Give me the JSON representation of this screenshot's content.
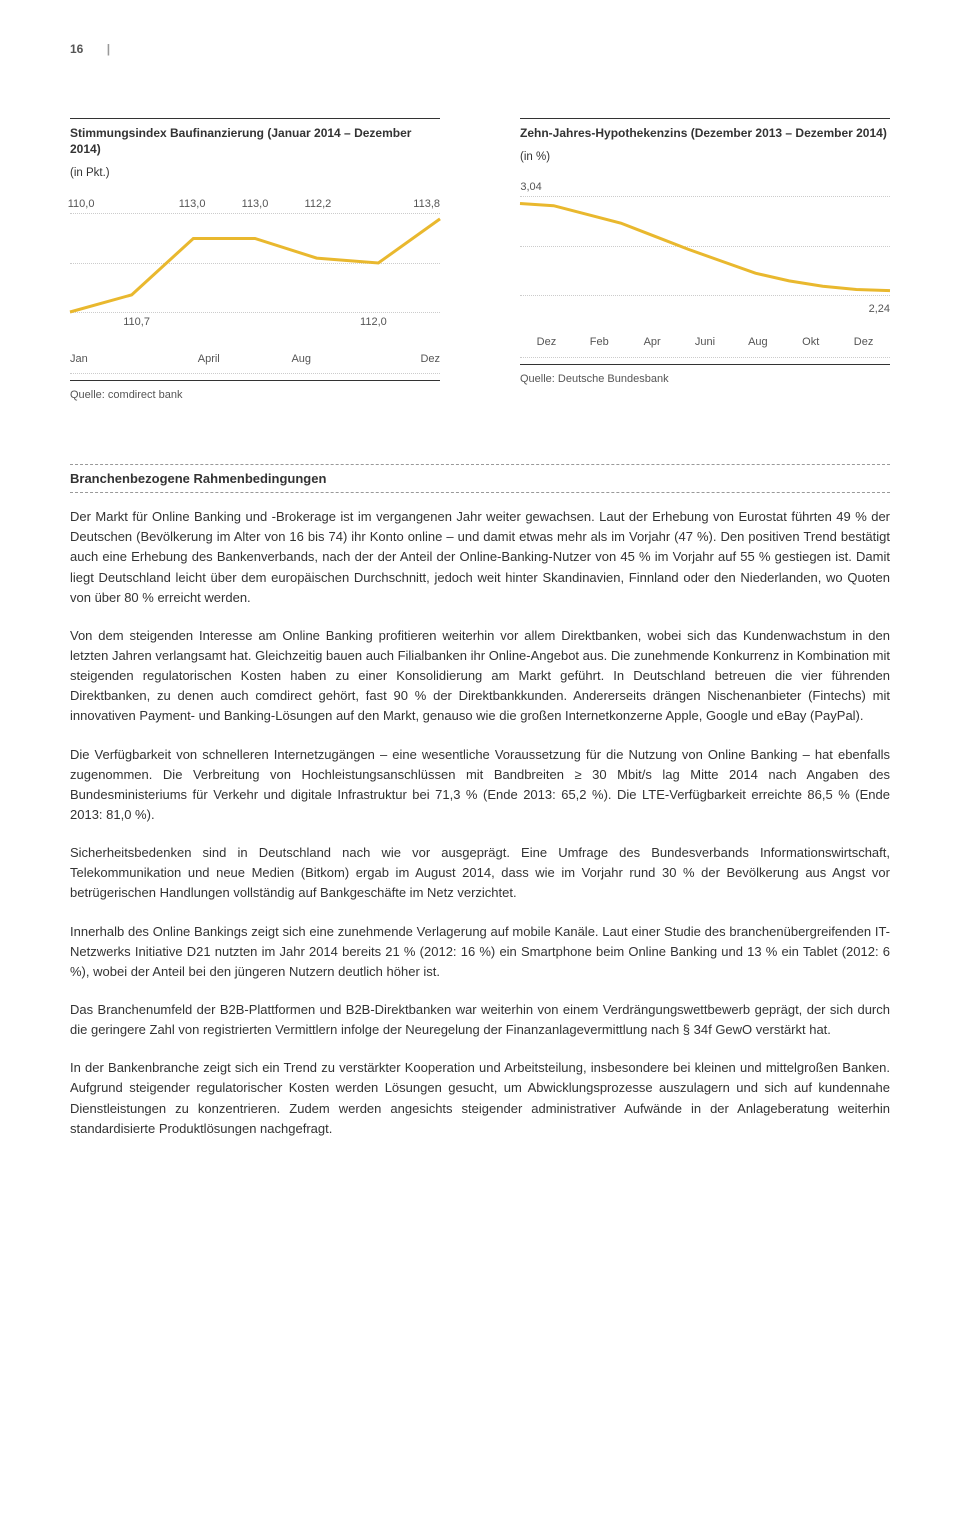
{
  "page_number": "16",
  "chart_left": {
    "title": "Stimmungsindex Baufinanzierung (Januar 2014 – Dezember 2014)",
    "subtitle": "(in Pkt.)",
    "type": "line",
    "line_color": "#e9b82e",
    "line_width": 3,
    "grid_color": "#cccccc",
    "background_color": "#ffffff",
    "point_labels": [
      "110,0",
      "110,7",
      "113,0",
      "113,0",
      "112,2",
      "112,0",
      "113,8"
    ],
    "values": [
      110.0,
      110.7,
      113.0,
      113.0,
      112.2,
      112.0,
      113.8
    ],
    "ylim": [
      110,
      114
    ],
    "x_ticks": [
      "Jan",
      "April",
      "Aug",
      "Dez"
    ],
    "source": "Quelle: comdirect bank"
  },
  "chart_right": {
    "title": "Zehn-Jahres-Hypothekenzins (Dezember 2013 – Dezember 2014)",
    "subtitle": "(in %)",
    "type": "line",
    "line_color": "#e9b82e",
    "line_width": 3,
    "grid_color": "#cccccc",
    "background_color": "#ffffff",
    "start_label": "3,04",
    "end_label": "2,24",
    "values": [
      3.04,
      3.02,
      2.94,
      2.86,
      2.74,
      2.62,
      2.51,
      2.4,
      2.33,
      2.28,
      2.25,
      2.24
    ],
    "ylim": [
      2.2,
      3.1
    ],
    "x_ticks": [
      "Dez",
      "Feb",
      "Apr",
      "Juni",
      "Aug",
      "Okt",
      "Dez"
    ],
    "source": "Quelle: Deutsche Bundesbank"
  },
  "section_heading": "Branchenbezogene Rahmenbedingungen",
  "paragraphs": [
    "Der Markt für Online Banking und -Brokerage ist im vergangenen Jahr weiter gewachsen. Laut der Erhebung von Eurostat führten 49 % der Deutschen (Bevölkerung im Alter von 16 bis 74) ihr Konto online – und damit etwas mehr als im Vorjahr (47 %). Den positiven Trend bestätigt auch eine Erhebung des Bankenverbands, nach der der Anteil der Online-Banking-Nutzer von 45 % im Vorjahr auf 55 % gestiegen ist. Damit liegt Deutschland leicht über dem europäischen Durchschnitt, jedoch weit hinter Skandinavien, Finnland oder den Niederlanden, wo Quoten von über 80 % erreicht werden.",
    "Von dem steigenden Interesse am Online Banking profitieren weiterhin vor allem Direktbanken, wobei sich das Kundenwachstum in den letzten Jahren verlangsamt hat. Gleichzeitig bauen auch Filialbanken ihr Online-Angebot aus. Die zunehmende Konkurrenz in Kombination mit steigenden regulatorischen Kosten haben zu einer Konsolidierung am Markt geführt. In Deutschland betreuen die vier führenden Direktbanken, zu denen auch comdirect gehört, fast 90 % der Direktbankkunden. Andererseits drängen Nischenanbieter (Fintechs) mit innovativen Payment- und Banking-Lösungen auf den Markt, genauso wie die großen Internetkonzerne Apple, Google und eBay (PayPal).",
    "Die Verfügbarkeit von schnelleren Internetzugängen – eine wesentliche Voraussetzung für die Nutzung von Online Banking – hat ebenfalls zugenommen. Die Verbreitung von Hochleistungsanschlüssen mit Bandbreiten ≥ 30 Mbit/s lag Mitte 2014 nach Angaben des Bundesministeriums für Verkehr und digitale Infrastruktur bei 71,3 % (Ende 2013: 65,2 %). Die LTE-Verfügbarkeit erreichte 86,5 % (Ende 2013: 81,0 %).",
    "Sicherheitsbedenken sind in Deutschland nach wie vor ausgeprägt. Eine Umfrage des Bundesverbands Informationswirtschaft, Telekommunikation und neue Medien (Bitkom) ergab im August 2014, dass wie im Vorjahr rund 30 % der Bevölkerung aus Angst vor betrügerischen Handlungen vollständig auf Bankgeschäfte im Netz verzichtet.",
    "Innerhalb des Online Bankings zeigt sich eine zunehmende Verlagerung auf mobile Kanäle. Laut einer Studie des branchenübergreifenden IT-Netzwerks Initiative D21 nutzten im Jahr 2014 bereits 21 % (2012: 16 %) ein Smartphone beim Online Banking und 13 % ein Tablet (2012: 6 %), wobei der Anteil bei den jüngeren Nutzern deutlich höher ist.",
    "Das Branchenumfeld der B2B-Plattformen und B2B-Direktbanken war weiterhin von einem Verdrängungswettbewerb geprägt, der sich durch die geringere Zahl von registrierten Vermittlern infolge der Neuregelung der Finanzanlagevermittlung nach § 34f GewO verstärkt hat.",
    "In der Bankenbranche zeigt sich ein Trend zu verstärkter Kooperation und Arbeitsteilung, insbesondere bei kleinen und mittelgroßen Banken. Aufgrund steigender regulatorischer Kosten werden Lösungen gesucht, um Abwicklungsprozesse auszulagern und sich auf kundennahe Dienstleistungen zu konzentrieren. Zudem werden angesichts steigender administrativer Aufwände in der Anlageberatung weiterhin standardisierte Produktlösungen nachgefragt."
  ]
}
